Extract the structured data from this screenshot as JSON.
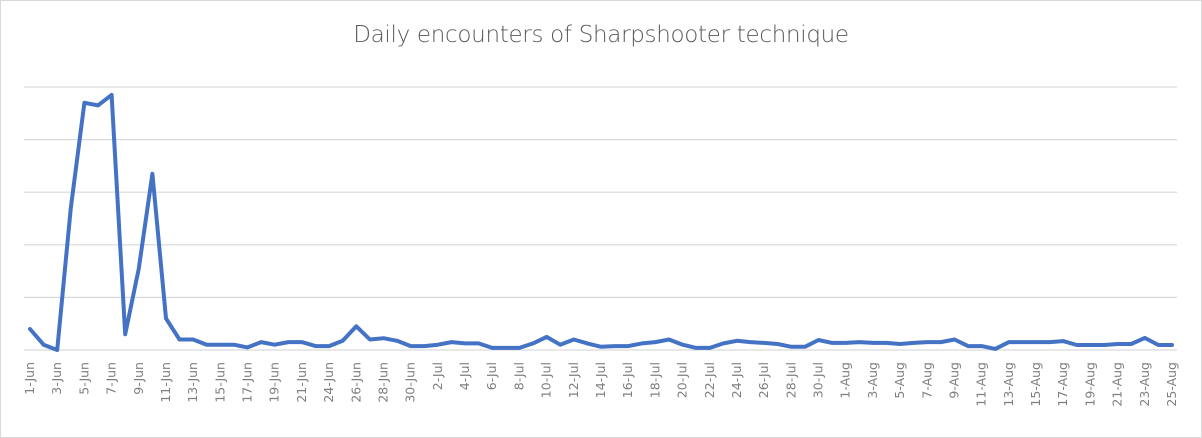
{
  "chart_data": {
    "type": "line",
    "title": "Daily encounters of Sharpshooter technique",
    "xlabel": "",
    "ylabel": "",
    "ylim": [
      0,
      100
    ],
    "y_gridlines": [
      0,
      20,
      40,
      60,
      80,
      100
    ],
    "y_tick_labels_visible": false,
    "grid": true,
    "legend": null,
    "series_color": "#4472c4",
    "x": [
      "1-Jun",
      "2-Jun",
      "3-Jun",
      "4-Jun",
      "5-Jun",
      "6-Jun",
      "7-Jun",
      "8-Jun",
      "9-Jun",
      "10-Jun",
      "11-Jun",
      "12-Jun",
      "13-Jun",
      "14-Jun",
      "15-Jun",
      "16-Jun",
      "17-Jun",
      "18-Jun",
      "19-Jun",
      "20-Jun",
      "21-Jun",
      "22-Jun",
      "24-Jun",
      "25-Jun",
      "26-Jun",
      "27-Jun",
      "28-Jun",
      "29-Jun",
      "30-Jun",
      "1-Jul",
      "2-Jul",
      "3-Jul",
      "4-Jul",
      "5-Jul",
      "6-Jul",
      "7-Jul",
      "8-Jul",
      "9-Jul",
      "10-Jul",
      "11-Jul",
      "12-Jul",
      "13-Jul",
      "14-Jul",
      "15-Jul",
      "16-Jul",
      "17-Jul",
      "18-Jul",
      "19-Jul",
      "20-Jul",
      "21-Jul",
      "22-Jul",
      "23-Jul",
      "24-Jul",
      "25-Jul",
      "26-Jul",
      "27-Jul",
      "28-Jul",
      "29-Jul",
      "30-Jul",
      "31-Jul",
      "1-Aug",
      "2-Aug",
      "3-Aug",
      "4-Aug",
      "5-Aug",
      "6-Aug",
      "7-Aug",
      "8-Aug",
      "9-Aug",
      "10-Aug",
      "11-Aug",
      "12-Aug",
      "13-Aug",
      "14-Aug",
      "15-Aug",
      "16-Aug",
      "17-Aug",
      "18-Aug",
      "19-Aug",
      "20-Aug",
      "21-Aug",
      "22-Aug",
      "23-Aug",
      "24-Aug",
      "25-Aug"
    ],
    "tick_labels": [
      "1-Jun",
      "3-Jun",
      "5-Jun",
      "7-Jun",
      "9-Jun",
      "11-Jun",
      "13-Jun",
      "15-Jun",
      "17-Jun",
      "19-Jun",
      "21-Jun",
      "24-Jun",
      "26-Jun",
      "28-Jun",
      "30-Jun",
      "2-Jul",
      "4-Jul",
      "6-Jul",
      "8-Jul",
      "10-Jul",
      "12-Jul",
      "14-Jul",
      "16-Jul",
      "18-Jul",
      "20-Jul",
      "22-Jul",
      "24-Jul",
      "26-Jul",
      "28-Jul",
      "30-Jul",
      "1-Aug",
      "3-Aug",
      "5-Aug",
      "7-Aug",
      "9-Aug",
      "11-Aug",
      "13-Aug",
      "15-Aug",
      "17-Aug",
      "19-Aug",
      "21-Aug",
      "23-Aug",
      "25-Aug"
    ],
    "series": [
      {
        "name": "Encounters",
        "values": [
          8,
          2,
          0,
          54,
          94,
          93,
          97,
          6,
          31,
          67,
          12,
          4,
          4,
          2,
          2,
          2,
          1,
          3,
          2,
          3,
          3,
          1.5,
          1.5,
          3.5,
          9,
          4,
          4.5,
          3.5,
          1.5,
          1.5,
          2,
          3,
          2.5,
          2.5,
          0.8,
          0.8,
          0.8,
          2.5,
          5,
          2,
          4,
          2.5,
          1.2,
          1.5,
          1.5,
          2.5,
          3,
          4,
          2,
          0.8,
          0.8,
          2.5,
          3.5,
          3,
          2.7,
          2.3,
          1.2,
          1.2,
          3.8,
          2.7,
          2.7,
          3,
          2.7,
          2.7,
          2.3,
          2.7,
          3,
          3,
          4,
          1.5,
          1.5,
          0.4,
          3,
          3,
          3,
          3,
          3.4,
          1.9,
          1.9,
          1.9,
          2.3,
          2.3,
          4.6,
          1.9,
          1.9
        ]
      }
    ]
  }
}
